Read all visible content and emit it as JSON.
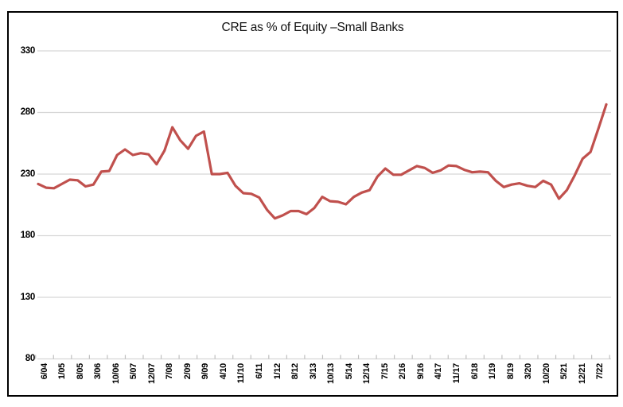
{
  "title": "CRE as % of Equity –Small Banks",
  "colors": {
    "line": "#C0504D",
    "gridline": "#D6D6D6",
    "tick": "#BFBFBF",
    "frame": "#000000",
    "text": "#000000",
    "background": "#FFFFFF"
  },
  "chart_data": {
    "type": "line",
    "title": "CRE as % of Equity –Small Banks",
    "xlabel": "",
    "ylabel": "",
    "ylim": [
      80,
      330
    ],
    "yticks": [
      330,
      280,
      230,
      180,
      130,
      80
    ],
    "grid": "horizontal",
    "legend": "none",
    "x_tick_labels": [
      "6/04",
      "1/05",
      "8/05",
      "3/06",
      "10/06",
      "5/07",
      "12/07",
      "7/08",
      "2/09",
      "9/09",
      "4/10",
      "11/10",
      "6/11",
      "1/12",
      "8/12",
      "3/13",
      "10/13",
      "5/14",
      "12/14",
      "7/15",
      "2/16",
      "9/16",
      "4/17",
      "11/17",
      "6/18",
      "1/19",
      "8/19",
      "3/20",
      "10/20",
      "5/21",
      "12/21",
      "7/22"
    ],
    "series": [
      {
        "name": "CRE as % of Equity - Small Banks",
        "color": "#C0504D",
        "values": [
          222,
          219,
          218.5,
          222,
          225.5,
          225,
          220,
          221.5,
          232,
          232.5,
          245.5,
          250,
          245.5,
          247,
          246,
          238,
          249,
          268,
          257.5,
          250.5,
          261,
          264.5,
          230,
          230,
          231,
          220.5,
          214.5,
          214,
          211,
          201,
          194,
          196.5,
          200,
          200,
          197.5,
          202.5,
          211.5,
          208,
          207.5,
          205.5,
          211.5,
          215,
          217,
          228,
          234.5,
          229.5,
          229.5,
          233,
          236.5,
          235,
          231,
          233,
          237,
          236.5,
          233.5,
          231.5,
          232,
          231.5,
          224.5,
          219.5,
          221.5,
          222.5,
          220.5,
          219.5,
          224.5,
          221.5,
          210,
          217,
          229,
          242.5,
          248,
          267,
          286.5
        ]
      }
    ]
  }
}
